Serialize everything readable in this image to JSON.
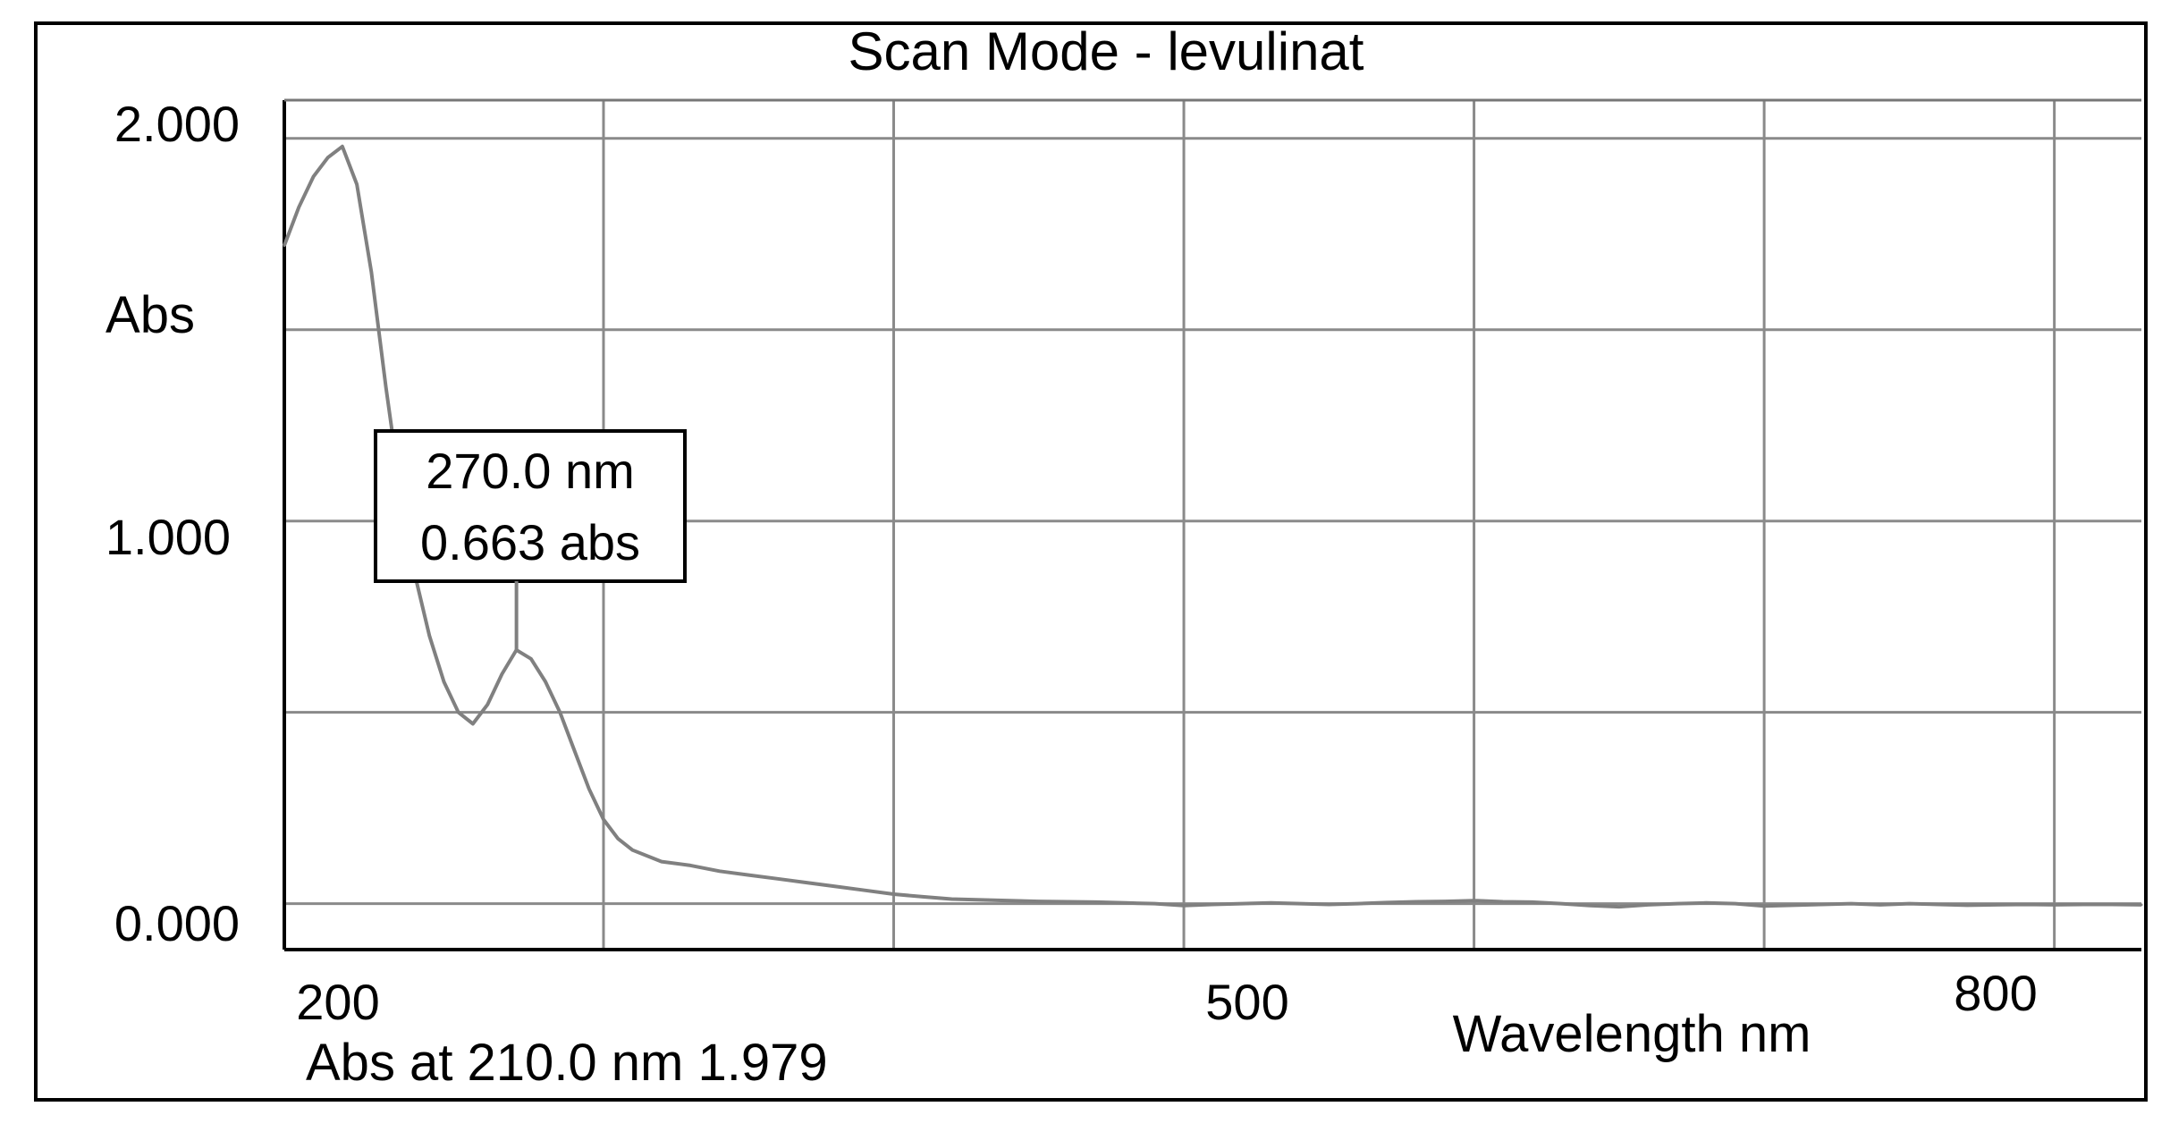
{
  "chart_data": {
    "type": "line",
    "title": "Scan Mode - levulinat",
    "xlabel": "Wavelength nm",
    "ylabel": "Abs",
    "x_tick_labels": [
      "200",
      "500",
      "800"
    ],
    "y_tick_labels": [
      "0.000",
      "1.000",
      "2.000"
    ],
    "xlim": [
      190,
      830
    ],
    "ylim": [
      -0.12,
      2.1
    ],
    "grid": true,
    "series": [
      {
        "points": [
          [
            190,
            1.72
          ],
          [
            195,
            1.82
          ],
          [
            200,
            1.9
          ],
          [
            205,
            1.95
          ],
          [
            210,
            1.979
          ],
          [
            215,
            1.88
          ],
          [
            220,
            1.65
          ],
          [
            225,
            1.35
          ],
          [
            230,
            1.08
          ],
          [
            235,
            0.86
          ],
          [
            240,
            0.7
          ],
          [
            245,
            0.58
          ],
          [
            250,
            0.5
          ],
          [
            255,
            0.47
          ],
          [
            260,
            0.52
          ],
          [
            265,
            0.6
          ],
          [
            270,
            0.663
          ],
          [
            275,
            0.64
          ],
          [
            280,
            0.58
          ],
          [
            285,
            0.5
          ],
          [
            290,
            0.4
          ],
          [
            295,
            0.3
          ],
          [
            300,
            0.22
          ],
          [
            305,
            0.17
          ],
          [
            310,
            0.14
          ],
          [
            320,
            0.11
          ],
          [
            330,
            0.1
          ],
          [
            340,
            0.085
          ],
          [
            350,
            0.075
          ],
          [
            360,
            0.065
          ],
          [
            370,
            0.055
          ],
          [
            380,
            0.045
          ],
          [
            390,
            0.035
          ],
          [
            400,
            0.025
          ],
          [
            410,
            0.018
          ],
          [
            420,
            0.012
          ],
          [
            430,
            0.01
          ],
          [
            440,
            0.008
          ],
          [
            450,
            0.006
          ],
          [
            460,
            0.005
          ],
          [
            470,
            0.004
          ],
          [
            480,
            0.002
          ],
          [
            490,
            0.0
          ],
          [
            500,
            -0.005
          ],
          [
            510,
            -0.002
          ],
          [
            520,
            0.0
          ],
          [
            530,
            0.002
          ],
          [
            540,
            0.0
          ],
          [
            550,
            -0.002
          ],
          [
            560,
            0.0
          ],
          [
            570,
            0.003
          ],
          [
            580,
            0.005
          ],
          [
            590,
            0.006
          ],
          [
            600,
            0.008
          ],
          [
            610,
            0.005
          ],
          [
            620,
            0.004
          ],
          [
            630,
            0.0
          ],
          [
            640,
            -0.005
          ],
          [
            650,
            -0.008
          ],
          [
            660,
            -0.003
          ],
          [
            670,
            0.0
          ],
          [
            680,
            0.002
          ],
          [
            690,
            0.0
          ],
          [
            700,
            -0.006
          ],
          [
            710,
            -0.004
          ],
          [
            720,
            -0.002
          ],
          [
            730,
            0.0
          ],
          [
            740,
            -0.003
          ],
          [
            750,
            0.0
          ],
          [
            760,
            -0.002
          ],
          [
            770,
            -0.004
          ],
          [
            780,
            -0.003
          ],
          [
            790,
            -0.002
          ],
          [
            800,
            -0.003
          ],
          [
            810,
            -0.002
          ],
          [
            820,
            -0.002
          ],
          [
            830,
            -0.003
          ]
        ]
      }
    ],
    "annotation": {
      "x": 270,
      "y": 0.663,
      "line1": "270.0 nm",
      "line2": "0.663 abs"
    },
    "footer_text": "Abs at 210.0 nm 1.979",
    "colors": {
      "line": "#808080",
      "grid": "#8a8a8a",
      "frame": "#000000"
    }
  }
}
